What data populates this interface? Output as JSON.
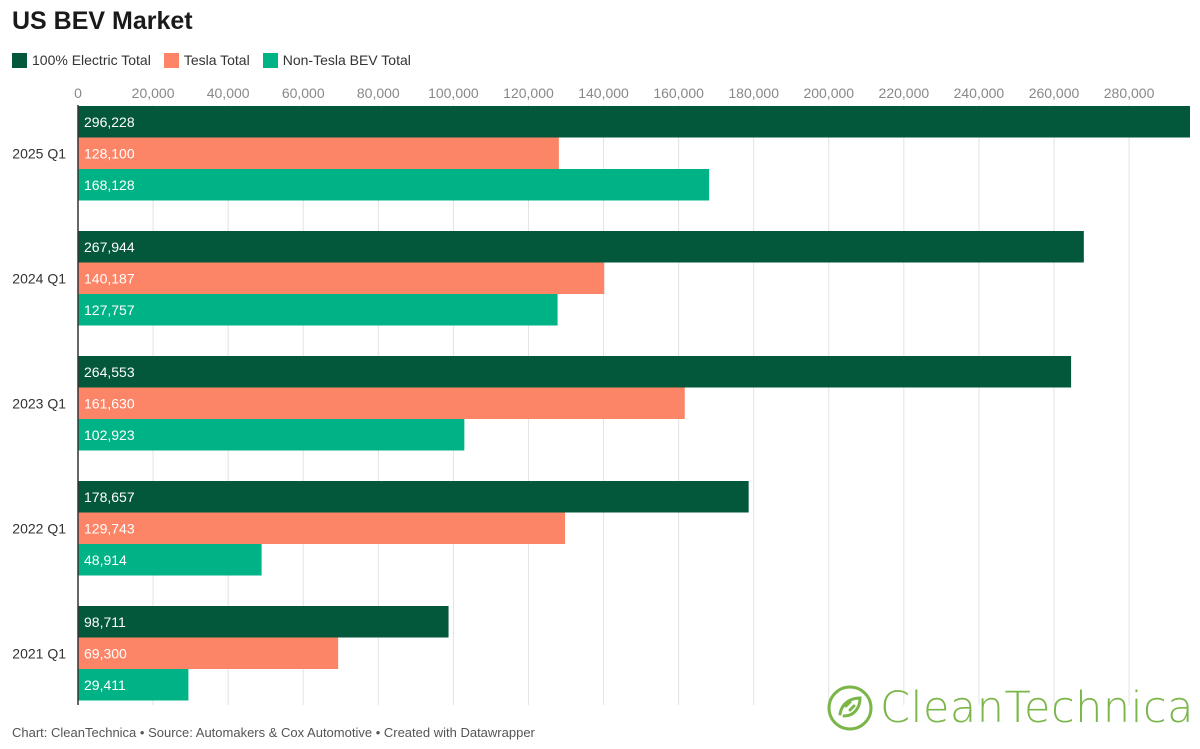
{
  "title": "US BEV Market",
  "colors": {
    "electric": "#03573a",
    "tesla": "#fc8467",
    "non_tesla": "#00b386",
    "grid": "#e3e3e3",
    "logo": "#7ab648"
  },
  "footer": {
    "chart": "Chart: CleanTechnica",
    "sep1": " • ",
    "source": "Source: Automakers & Cox Automotive",
    "sep2": " • ",
    "created": "Created with Datawrapper"
  },
  "logo": {
    "text": "CleanTechnica"
  },
  "chart_data": {
    "type": "bar",
    "orientation": "horizontal",
    "title": "US BEV Market",
    "categories": [
      "2025 Q1",
      "2024 Q1",
      "2023 Q1",
      "2022 Q1",
      "2021 Q1"
    ],
    "series": [
      {
        "name": "100% Electric Total",
        "color": "#03573a",
        "values": [
          296228,
          267944,
          264553,
          178657,
          98711
        ],
        "labels": [
          "296,228",
          "267,944",
          "264,553",
          "178,657",
          "98,711"
        ]
      },
      {
        "name": "Tesla Total",
        "color": "#fc8467",
        "values": [
          128100,
          140187,
          161630,
          129743,
          69300
        ],
        "labels": [
          "128,100",
          "140,187",
          "161,630",
          "129,743",
          "69,300"
        ]
      },
      {
        "name": "Non-Tesla BEV Total",
        "color": "#00b386",
        "values": [
          168128,
          127757,
          102923,
          48914,
          29411
        ],
        "labels": [
          "168,128",
          "127,757",
          "102,923",
          "48,914",
          "29,411"
        ]
      }
    ],
    "xticks": [
      0,
      20000,
      40000,
      60000,
      80000,
      100000,
      120000,
      140000,
      160000,
      180000,
      200000,
      220000,
      240000,
      260000,
      280000
    ],
    "xtick_labels": [
      "0",
      "20,000",
      "40,000",
      "60,000",
      "80,000",
      "100,000",
      "120,000",
      "140,000",
      "160,000",
      "180,000",
      "200,000",
      "220,000",
      "240,000",
      "260,000",
      "280,000"
    ],
    "xlim": [
      0,
      296228
    ],
    "grid": true,
    "legend_position": "top-left"
  }
}
